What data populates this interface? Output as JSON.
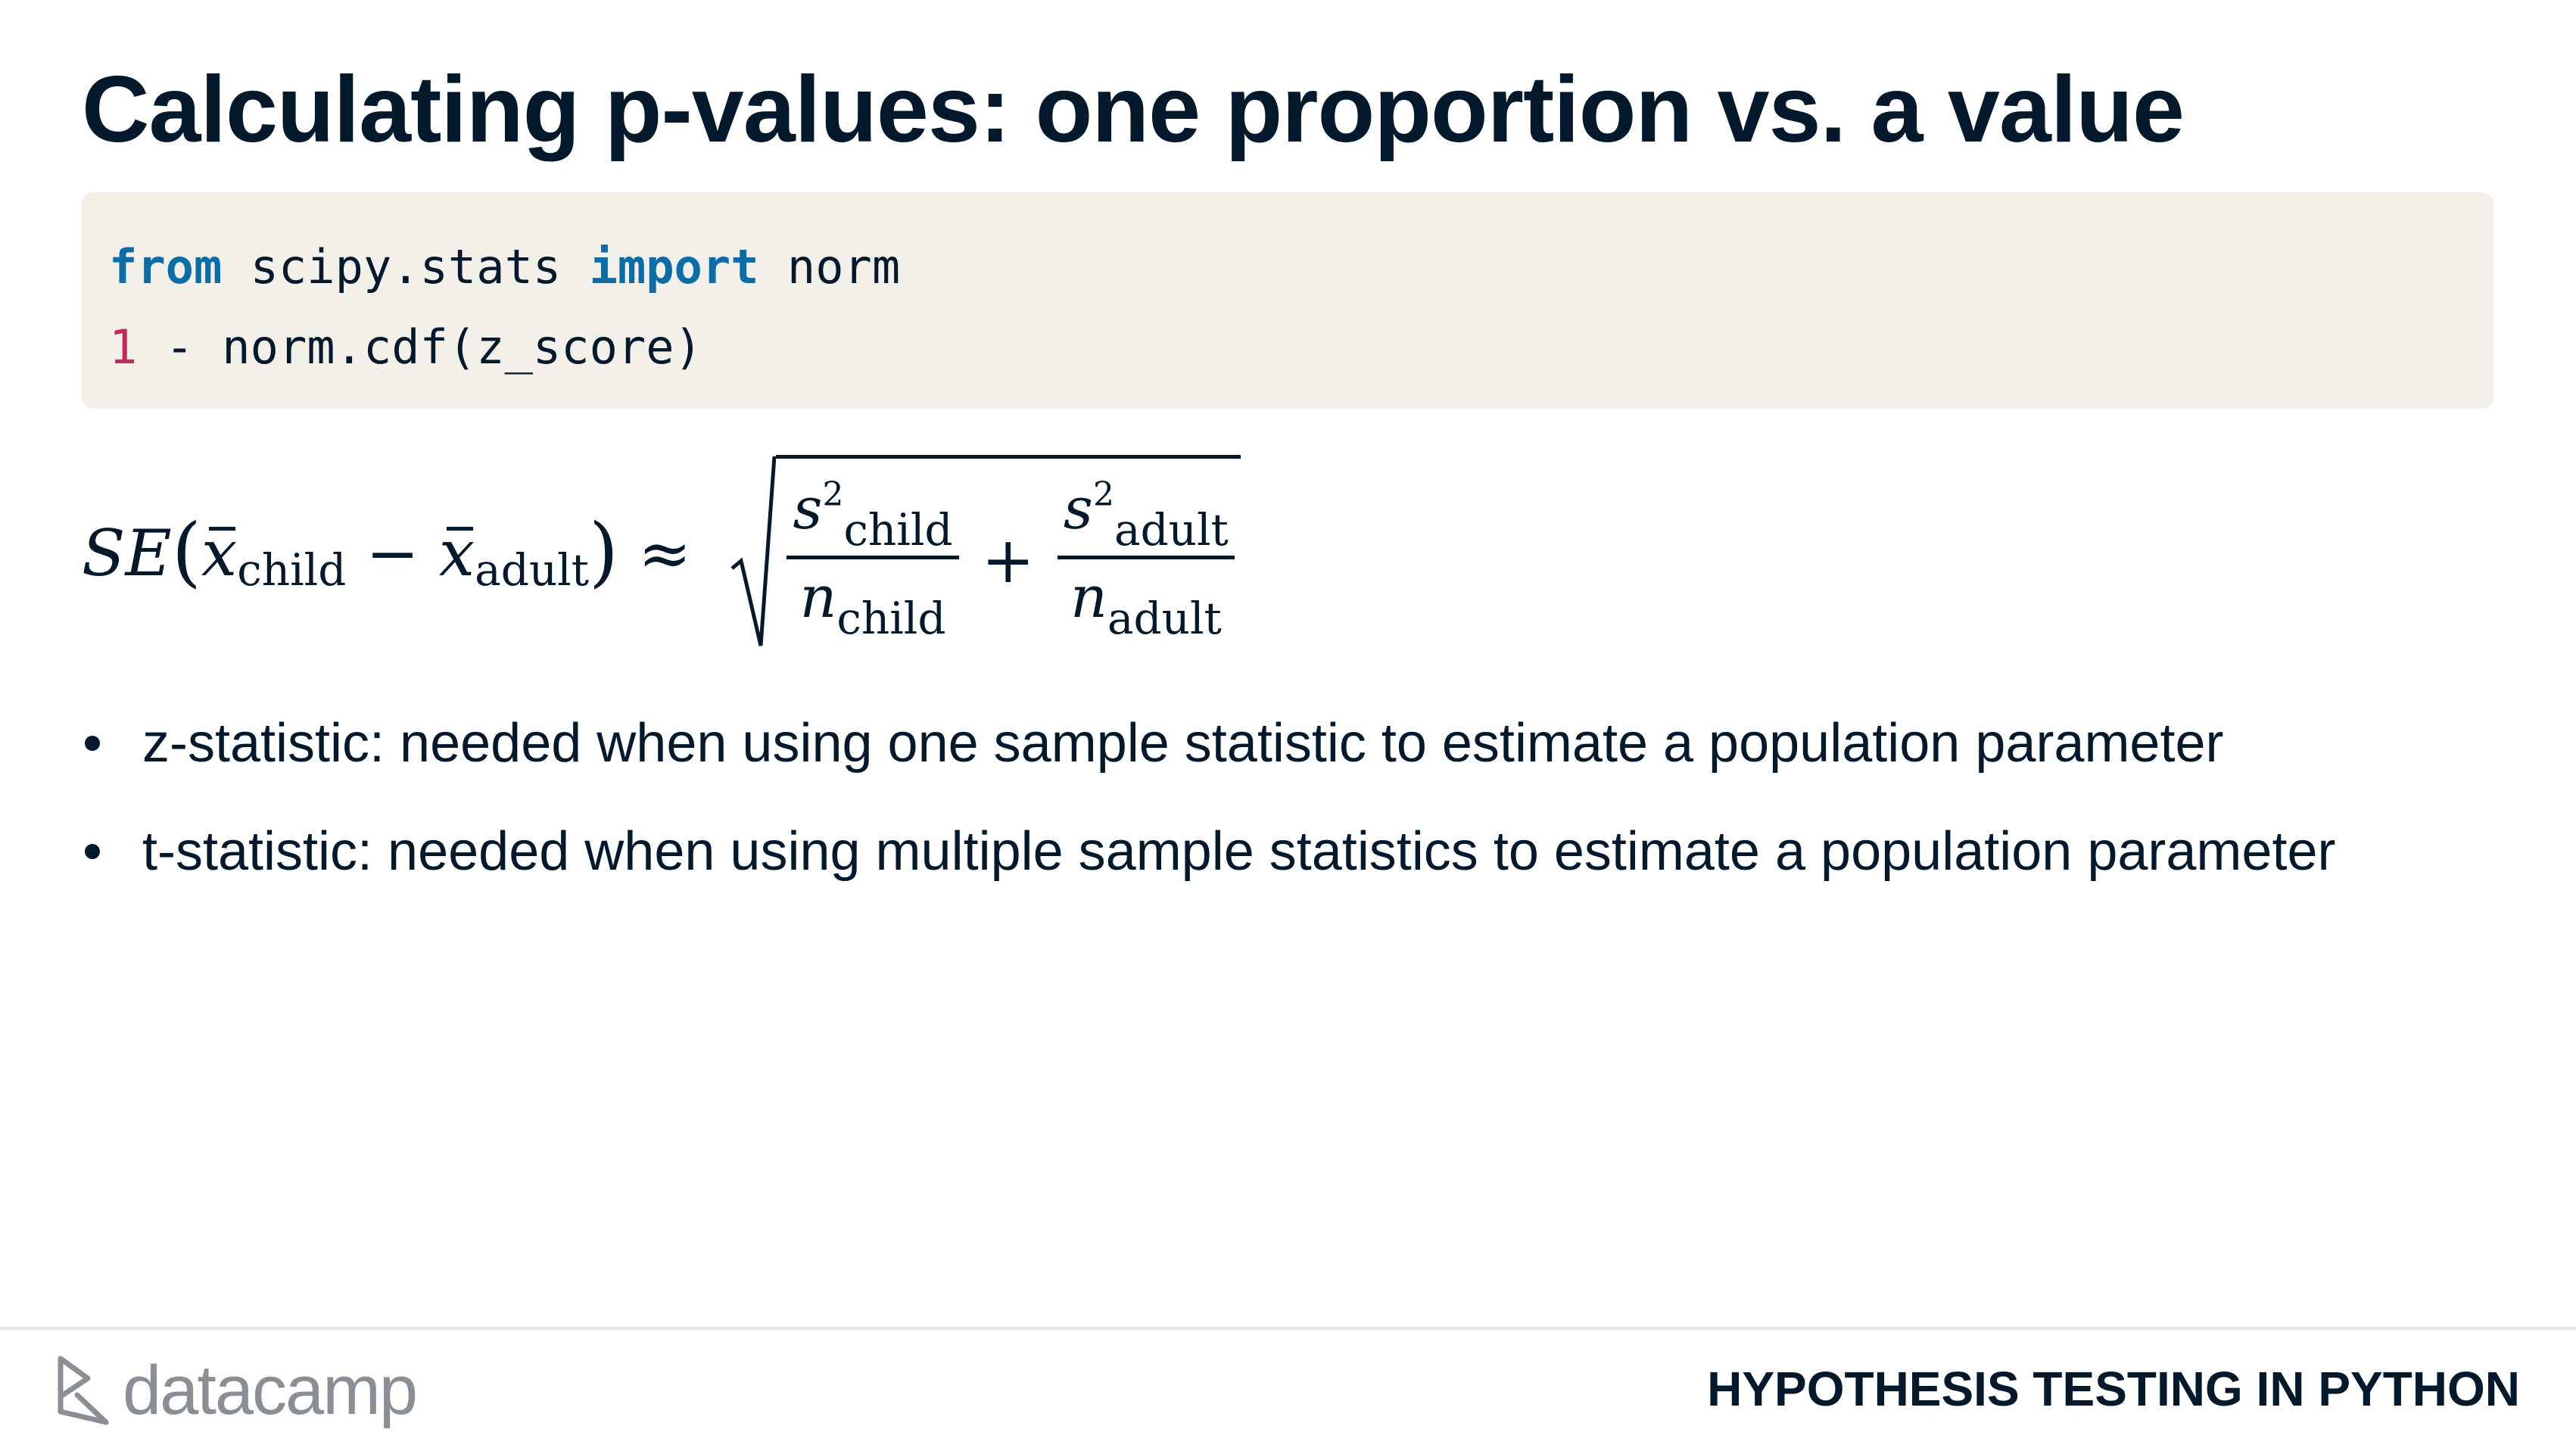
{
  "slide": {
    "title": "Calculating p-values: one proportion vs. a value"
  },
  "code": {
    "line1": {
      "kw1": "from",
      "t1": " scipy.stats ",
      "kw2": "import",
      "t2": " norm"
    },
    "line2": {
      "num": "1",
      "t1": " - norm.cdf(z_score)"
    }
  },
  "formula": {
    "lhs_se": "SE",
    "x_symbol": "x",
    "sub_child": "child",
    "sub_adult": "adult",
    "minus": "−",
    "approx": "≈",
    "s_symbol": "s",
    "n_symbol": "n",
    "sup_two": "2",
    "plus": "+",
    "paren_open": "(",
    "paren_close": ")"
  },
  "bullets": [
    "z-statistic: needed when using one sample statistic to estimate a population parameter",
    "t-statistic: needed when using multiple sample statistics to estimate a population parameter"
  ],
  "footer": {
    "logo_text": "datacamp",
    "course_title": "HYPOTHESIS TESTING IN PYTHON"
  },
  "colors": {
    "text": "#05192D",
    "code_bg": "#F3F0EA",
    "keyword": "#0B6CA8",
    "number": "#C22B5D",
    "logo_gray": "#8A8F96"
  }
}
